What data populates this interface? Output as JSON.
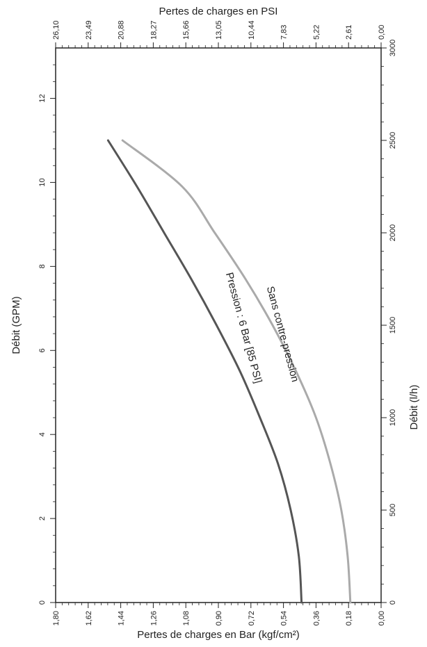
{
  "chart_data": {
    "type": "line",
    "orientation": "rotated-90",
    "titles": {
      "top": "Pertes de charges en PSI",
      "bottom": "Pertes de charges en Bar (kgf/cm²)",
      "left": "Débit (GPM)",
      "right": "Débit (l/h)"
    },
    "axes": {
      "bar": {
        "label": "Pertes de charges en Bar (kgf/cm²)",
        "range": [
          0,
          1.8
        ],
        "ticks": [
          "1,80",
          "1,62",
          "1,44",
          "1,26",
          "1,08",
          "0,90",
          "0,72",
          "0,54",
          "0,36",
          "0,18",
          "0,00"
        ]
      },
      "psi": {
        "label": "Pertes de charges en PSI",
        "range": [
          0,
          26.1
        ],
        "ticks": [
          "26,10",
          "23,49",
          "20,88",
          "18,27",
          "15,66",
          "13,05",
          "10,44",
          "7,83",
          "5,22",
          "2,61",
          "0,00"
        ]
      },
      "gpm": {
        "label": "Débit (GPM)",
        "range": [
          0,
          13.2
        ],
        "ticks": [
          "0",
          "2",
          "4",
          "6",
          "8",
          "10",
          "12"
        ]
      },
      "lh": {
        "label": "Débit (l/h)",
        "range": [
          0,
          3000
        ],
        "ticks": [
          "0",
          "500",
          "1000",
          "1500",
          "2000",
          "2500",
          "3000"
        ]
      }
    },
    "series": [
      {
        "name": "Pression : 6 Bar [85 PSI]",
        "color": "#555555",
        "x_lh": [
          0,
          250,
          500,
          750,
          1000,
          1250,
          1500,
          1750,
          2000,
          2250,
          2500
        ],
        "y_bar": [
          0.44,
          0.455,
          0.5,
          0.57,
          0.67,
          0.78,
          0.91,
          1.05,
          1.2,
          1.35,
          1.51
        ]
      },
      {
        "name": "Sans contre-pression",
        "color": "#aaaaaa",
        "x_lh": [
          0,
          250,
          500,
          750,
          1000,
          1250,
          1500,
          1750,
          2000,
          2250,
          2500
        ],
        "y_bar": [
          0.17,
          0.185,
          0.22,
          0.28,
          0.36,
          0.47,
          0.6,
          0.75,
          0.92,
          1.1,
          1.43
        ]
      }
    ]
  }
}
